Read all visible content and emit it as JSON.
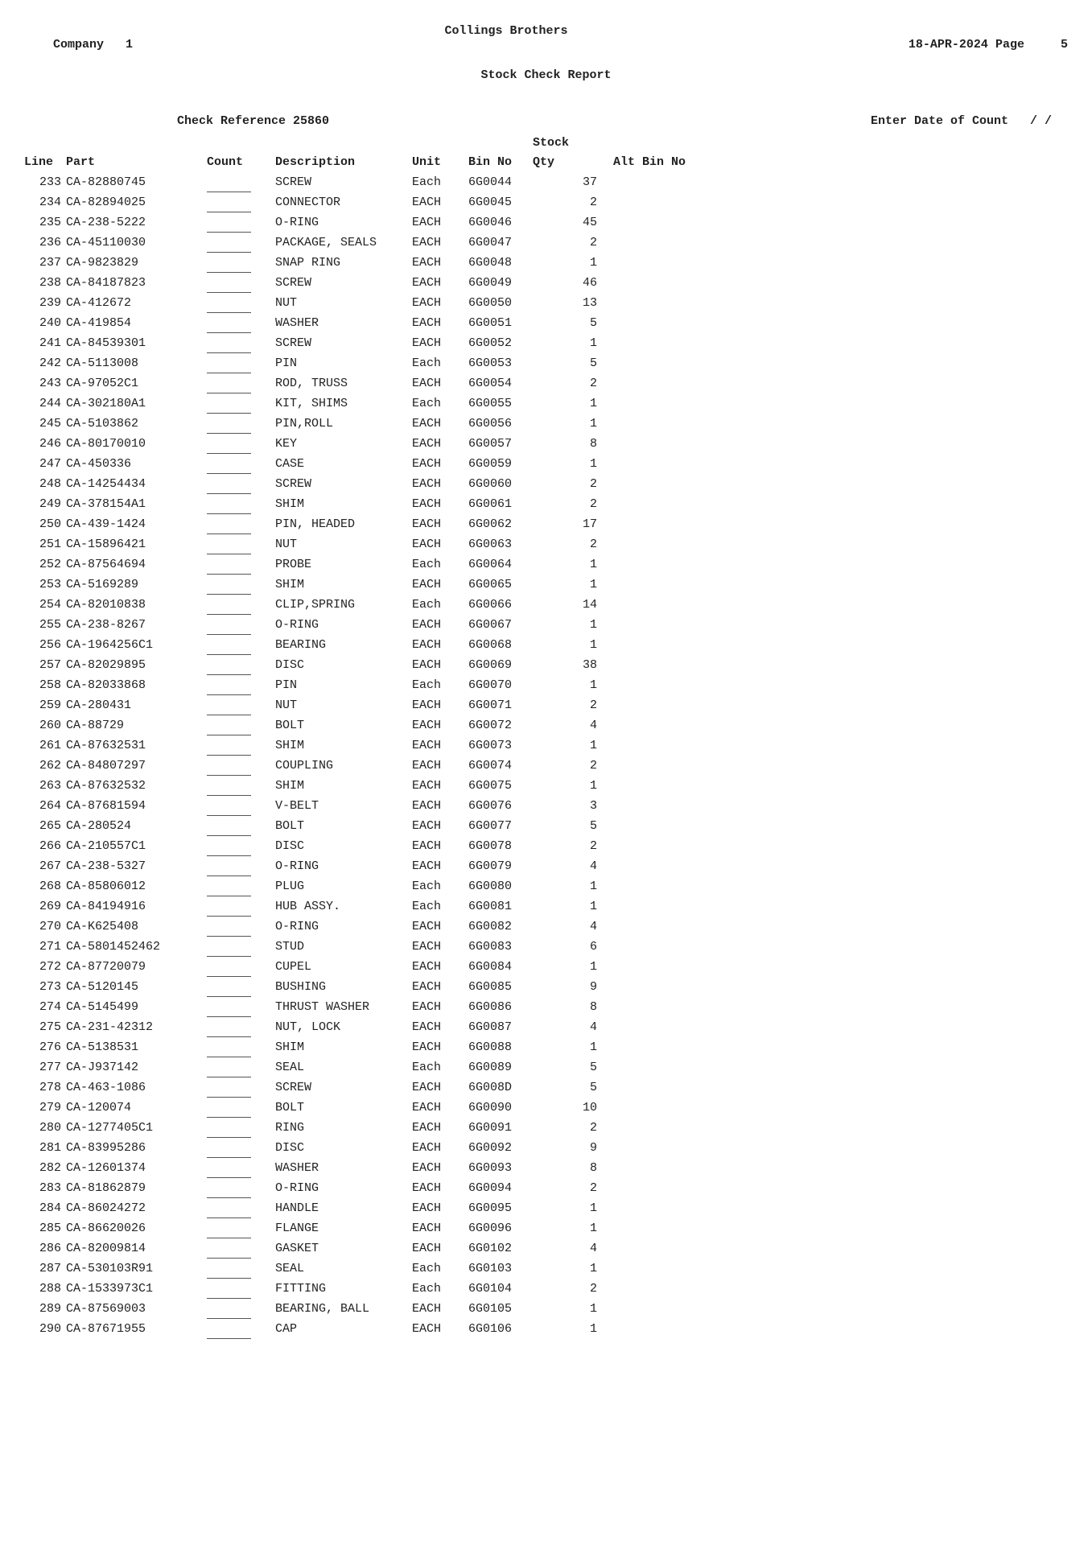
{
  "header": {
    "company_label": "Company",
    "company_no": "1",
    "company_name": "Collings Brothers",
    "date": "18-APR-2024",
    "page_label": "Page",
    "page_no": "5",
    "subtitle": "Stock Check Report",
    "check_ref_label": "Check Reference",
    "check_ref": "25860",
    "enter_date_label": "Enter Date of Count",
    "enter_date_value": "/   /"
  },
  "columns": {
    "line": "Line",
    "part": "Part",
    "count": "Count",
    "description": "Description",
    "unit": "Unit",
    "bin": "Bin No",
    "stock_qty": "Stock Qty",
    "alt_bin": "Alt Bin No"
  },
  "rows": [
    {
      "line": "233",
      "part": "CA-82880745",
      "desc": "SCREW",
      "unit": "Each",
      "bin": "6G0044",
      "qty": "37"
    },
    {
      "line": "234",
      "part": "CA-82894025",
      "desc": "CONNECTOR",
      "unit": "EACH",
      "bin": "6G0045",
      "qty": "2"
    },
    {
      "line": "235",
      "part": "CA-238-5222",
      "desc": "O-RING",
      "unit": "EACH",
      "bin": "6G0046",
      "qty": "45"
    },
    {
      "line": "236",
      "part": "CA-45110030",
      "desc": "PACKAGE, SEALS",
      "unit": "EACH",
      "bin": "6G0047",
      "qty": "2"
    },
    {
      "line": "237",
      "part": "CA-9823829",
      "desc": "SNAP RING",
      "unit": "EACH",
      "bin": "6G0048",
      "qty": "1"
    },
    {
      "line": "238",
      "part": "CA-84187823",
      "desc": "SCREW",
      "unit": "EACH",
      "bin": "6G0049",
      "qty": "46"
    },
    {
      "line": "239",
      "part": "CA-412672",
      "desc": "NUT",
      "unit": "EACH",
      "bin": "6G0050",
      "qty": "13"
    },
    {
      "line": "240",
      "part": "CA-419854",
      "desc": "WASHER",
      "unit": "EACH",
      "bin": "6G0051",
      "qty": "5"
    },
    {
      "line": "241",
      "part": "CA-84539301",
      "desc": "SCREW",
      "unit": "EACH",
      "bin": "6G0052",
      "qty": "1"
    },
    {
      "line": "242",
      "part": "CA-5113008",
      "desc": "PIN",
      "unit": "Each",
      "bin": "6G0053",
      "qty": "5"
    },
    {
      "line": "243",
      "part": "CA-97052C1",
      "desc": "ROD, TRUSS",
      "unit": "EACH",
      "bin": "6G0054",
      "qty": "2"
    },
    {
      "line": "244",
      "part": "CA-302180A1",
      "desc": "KIT, SHIMS",
      "unit": "Each",
      "bin": "6G0055",
      "qty": "1"
    },
    {
      "line": "245",
      "part": "CA-5103862",
      "desc": "PIN,ROLL",
      "unit": "EACH",
      "bin": "6G0056",
      "qty": "1"
    },
    {
      "line": "246",
      "part": "CA-80170010",
      "desc": "KEY",
      "unit": "EACH",
      "bin": "6G0057",
      "qty": "8"
    },
    {
      "line": "247",
      "part": "CA-450336",
      "desc": "CASE",
      "unit": "EACH",
      "bin": "6G0059",
      "qty": "1"
    },
    {
      "line": "248",
      "part": "CA-14254434",
      "desc": "SCREW",
      "unit": "EACH",
      "bin": "6G0060",
      "qty": "2"
    },
    {
      "line": "249",
      "part": "CA-378154A1",
      "desc": "SHIM",
      "unit": "EACH",
      "bin": "6G0061",
      "qty": "2"
    },
    {
      "line": "250",
      "part": "CA-439-1424",
      "desc": "PIN, HEADED",
      "unit": "EACH",
      "bin": "6G0062",
      "qty": "17"
    },
    {
      "line": "251",
      "part": "CA-15896421",
      "desc": "NUT",
      "unit": "EACH",
      "bin": "6G0063",
      "qty": "2"
    },
    {
      "line": "252",
      "part": "CA-87564694",
      "desc": "PROBE",
      "unit": "Each",
      "bin": "6G0064",
      "qty": "1"
    },
    {
      "line": "253",
      "part": "CA-5169289",
      "desc": "SHIM",
      "unit": "EACH",
      "bin": "6G0065",
      "qty": "1"
    },
    {
      "line": "254",
      "part": "CA-82010838",
      "desc": "CLIP,SPRING",
      "unit": "Each",
      "bin": "6G0066",
      "qty": "14"
    },
    {
      "line": "255",
      "part": "CA-238-8267",
      "desc": "O-RING",
      "unit": "EACH",
      "bin": "6G0067",
      "qty": "1"
    },
    {
      "line": "256",
      "part": "CA-1964256C1",
      "desc": "BEARING",
      "unit": "EACH",
      "bin": "6G0068",
      "qty": "1"
    },
    {
      "line": "257",
      "part": "CA-82029895",
      "desc": "DISC",
      "unit": "EACH",
      "bin": "6G0069",
      "qty": "38"
    },
    {
      "line": "258",
      "part": "CA-82033868",
      "desc": "PIN",
      "unit": "Each",
      "bin": "6G0070",
      "qty": "1"
    },
    {
      "line": "259",
      "part": "CA-280431",
      "desc": "NUT",
      "unit": "EACH",
      "bin": "6G0071",
      "qty": "2"
    },
    {
      "line": "260",
      "part": "CA-88729",
      "desc": "BOLT",
      "unit": "EACH",
      "bin": "6G0072",
      "qty": "4"
    },
    {
      "line": "261",
      "part": "CA-87632531",
      "desc": "SHIM",
      "unit": "EACH",
      "bin": "6G0073",
      "qty": "1"
    },
    {
      "line": "262",
      "part": "CA-84807297",
      "desc": "COUPLING",
      "unit": "EACH",
      "bin": "6G0074",
      "qty": "2"
    },
    {
      "line": "263",
      "part": "CA-87632532",
      "desc": "SHIM",
      "unit": "EACH",
      "bin": "6G0075",
      "qty": "1"
    },
    {
      "line": "264",
      "part": "CA-87681594",
      "desc": "V-BELT",
      "unit": "EACH",
      "bin": "6G0076",
      "qty": "3"
    },
    {
      "line": "265",
      "part": "CA-280524",
      "desc": "BOLT",
      "unit": "EACH",
      "bin": "6G0077",
      "qty": "5"
    },
    {
      "line": "266",
      "part": "CA-210557C1",
      "desc": "DISC",
      "unit": "EACH",
      "bin": "6G0078",
      "qty": "2"
    },
    {
      "line": "267",
      "part": "CA-238-5327",
      "desc": "O-RING",
      "unit": "EACH",
      "bin": "6G0079",
      "qty": "4"
    },
    {
      "line": "268",
      "part": "CA-85806012",
      "desc": "PLUG",
      "unit": "Each",
      "bin": "6G0080",
      "qty": "1"
    },
    {
      "line": "269",
      "part": "CA-84194916",
      "desc": "HUB ASSY.",
      "unit": "Each",
      "bin": "6G0081",
      "qty": "1"
    },
    {
      "line": "270",
      "part": "CA-K625408",
      "desc": "O-RING",
      "unit": "EACH",
      "bin": "6G0082",
      "qty": "4"
    },
    {
      "line": "271",
      "part": "CA-5801452462",
      "desc": "STUD",
      "unit": "EACH",
      "bin": "6G0083",
      "qty": "6"
    },
    {
      "line": "272",
      "part": "CA-87720079",
      "desc": "CUPEL",
      "unit": "EACH",
      "bin": "6G0084",
      "qty": "1"
    },
    {
      "line": "273",
      "part": "CA-5120145",
      "desc": "BUSHING",
      "unit": "EACH",
      "bin": "6G0085",
      "qty": "9"
    },
    {
      "line": "274",
      "part": "CA-5145499",
      "desc": "THRUST WASHER",
      "unit": "EACH",
      "bin": "6G0086",
      "qty": "8"
    },
    {
      "line": "275",
      "part": "CA-231-42312",
      "desc": "NUT, LOCK",
      "unit": "EACH",
      "bin": "6G0087",
      "qty": "4"
    },
    {
      "line": "276",
      "part": "CA-5138531",
      "desc": "SHIM",
      "unit": "EACH",
      "bin": "6G0088",
      "qty": "1"
    },
    {
      "line": "277",
      "part": "CA-J937142",
      "desc": "SEAL",
      "unit": "Each",
      "bin": "6G0089",
      "qty": "5"
    },
    {
      "line": "278",
      "part": "CA-463-1086",
      "desc": "SCREW",
      "unit": "EACH",
      "bin": "6G008D",
      "qty": "5"
    },
    {
      "line": "279",
      "part": "CA-120074",
      "desc": "BOLT",
      "unit": "EACH",
      "bin": "6G0090",
      "qty": "10"
    },
    {
      "line": "280",
      "part": "CA-1277405C1",
      "desc": "RING",
      "unit": "EACH",
      "bin": "6G0091",
      "qty": "2"
    },
    {
      "line": "281",
      "part": "CA-83995286",
      "desc": "DISC",
      "unit": "EACH",
      "bin": "6G0092",
      "qty": "9"
    },
    {
      "line": "282",
      "part": "CA-12601374",
      "desc": "WASHER",
      "unit": "EACH",
      "bin": "6G0093",
      "qty": "8"
    },
    {
      "line": "283",
      "part": "CA-81862879",
      "desc": "O-RING",
      "unit": "EACH",
      "bin": "6G0094",
      "qty": "2"
    },
    {
      "line": "284",
      "part": "CA-86024272",
      "desc": "HANDLE",
      "unit": "EACH",
      "bin": "6G0095",
      "qty": "1"
    },
    {
      "line": "285",
      "part": "CA-86620026",
      "desc": "FLANGE",
      "unit": "EACH",
      "bin": "6G0096",
      "qty": "1"
    },
    {
      "line": "286",
      "part": "CA-82009814",
      "desc": "GASKET",
      "unit": "EACH",
      "bin": "6G0102",
      "qty": "4"
    },
    {
      "line": "287",
      "part": "CA-530103R91",
      "desc": "SEAL",
      "unit": "Each",
      "bin": "6G0103",
      "qty": "1"
    },
    {
      "line": "288",
      "part": "CA-1533973C1",
      "desc": "FITTING",
      "unit": "Each",
      "bin": "6G0104",
      "qty": "2"
    },
    {
      "line": "289",
      "part": "CA-87569003",
      "desc": "BEARING, BALL",
      "unit": "EACH",
      "bin": "6G0105",
      "qty": "1"
    },
    {
      "line": "290",
      "part": "CA-87671955",
      "desc": "CAP",
      "unit": "EACH",
      "bin": "6G0106",
      "qty": "1"
    }
  ]
}
